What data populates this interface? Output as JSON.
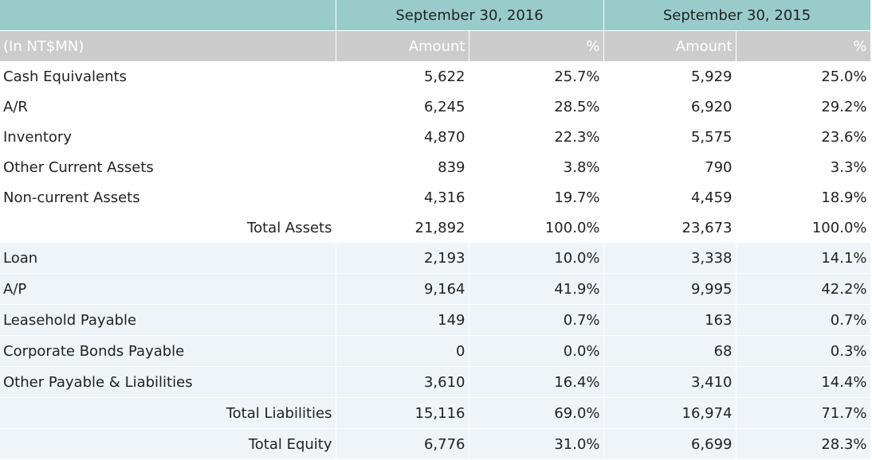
{
  "header": {
    "period_2016": "September 30, 2016",
    "period_2015": "September 30, 2015",
    "unit_label": "(In NT$MN)",
    "amount_label_2016": "Amount",
    "pct_label_2016": "%",
    "amount_label_2015": "Amount",
    "pct_label_2015": "%"
  },
  "rows": [
    {
      "label": "Cash Equivalents",
      "amt_2016": "5,622",
      "pct_2016": "25.7%",
      "amt_2015": "5,929",
      "pct_2015": "25.0%"
    },
    {
      "label": "A/R",
      "amt_2016": "6,245",
      "pct_2016": "28.5%",
      "amt_2015": "6,920",
      "pct_2015": "29.2%"
    },
    {
      "label": "Inventory",
      "amt_2016": "4,870",
      "pct_2016": "22.3%",
      "amt_2015": "5,575",
      "pct_2015": "23.6%"
    },
    {
      "label": "Other Current Assets",
      "amt_2016": "839",
      "pct_2016": "3.8%",
      "amt_2015": "790",
      "pct_2015": "3.3%"
    },
    {
      "label": "Non-current Assets",
      "amt_2016": "4,316",
      "pct_2016": "19.7%",
      "amt_2015": "4,459",
      "pct_2015": "18.9%"
    },
    {
      "label": "Total Assets",
      "amt_2016": "21,892",
      "pct_2016": "100.0%",
      "amt_2015": "23,673",
      "pct_2015": "100.0%"
    },
    {
      "label": "Loan",
      "amt_2016": "2,193",
      "pct_2016": "10.0%",
      "amt_2015": "3,338",
      "pct_2015": "14.1%"
    },
    {
      "label": "A/P",
      "amt_2016": "9,164",
      "pct_2016": "41.9%",
      "amt_2015": "9,995",
      "pct_2015": "42.2%"
    },
    {
      "label": "Leasehold Payable",
      "amt_2016": "149",
      "pct_2016": "0.7%",
      "amt_2015": "163",
      "pct_2015": "0.7%"
    },
    {
      "label": "Corporate Bonds Payable",
      "amt_2016": "0",
      "pct_2016": "0.0%",
      "amt_2015": "68",
      "pct_2015": "0.3%"
    },
    {
      "label": "Other Payable & Liabilities",
      "amt_2016": "3,610",
      "pct_2016": "16.4%",
      "amt_2015": "3,410",
      "pct_2015": "14.4%"
    },
    {
      "label": "Total Liabilities",
      "amt_2016": "15,116",
      "pct_2016": "69.0%",
      "amt_2015": "16,974",
      "pct_2015": "71.7%"
    },
    {
      "label": "Total Equity",
      "amt_2016": "6,776",
      "pct_2016": "31.0%",
      "amt_2015": "6,699",
      "pct_2015": "28.3%"
    }
  ],
  "colors": {
    "header_teal": "#9acbcb",
    "subheader_gray": "#cccccc",
    "liability_row_bg": "#eff4f8",
    "text": "#222222"
  }
}
